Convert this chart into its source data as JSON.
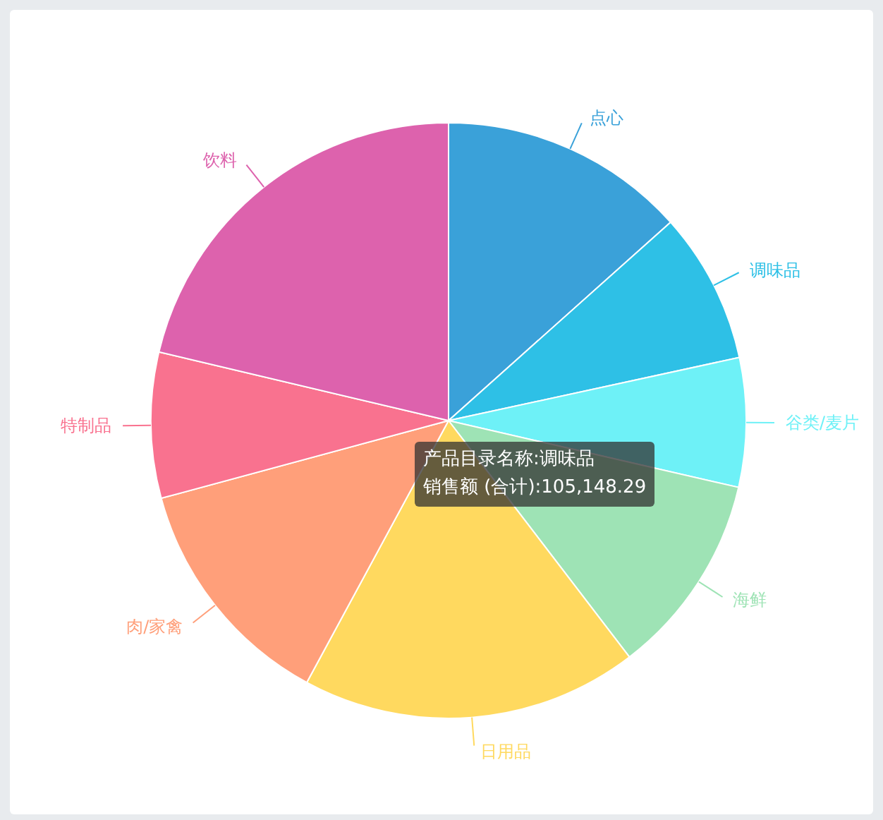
{
  "chart_data": {
    "type": "pie",
    "categories": [
      "点心",
      "调味品",
      "谷类/麦片",
      "海鲜",
      "日用品",
      "肉/家禽",
      "特制品",
      "饮料"
    ],
    "values": [
      13.4,
      8.2,
      7.0,
      11.0,
      18.3,
      12.9,
      7.9,
      21.3
    ],
    "colors": [
      "#3aa1d9",
      "#2ec0e6",
      "#6ef1f7",
      "#9ee3b5",
      "#ffd95f",
      "#ff9f7a",
      "#f9728f",
      "#dd62ad"
    ],
    "annotations": [
      "产品目录名称:调味品",
      "销售额 (合计):105,148.29"
    ],
    "legend": false
  }
}
